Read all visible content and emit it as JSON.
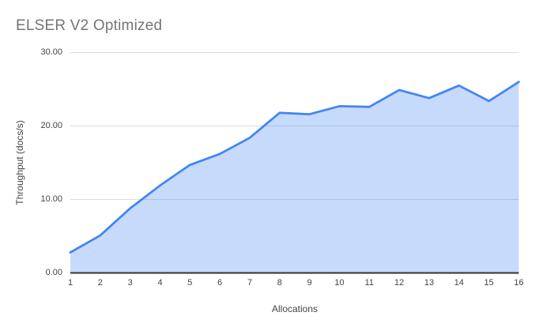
{
  "chart": {
    "title": "ELSER V2 Optimized"
  },
  "chart_data": {
    "type": "area",
    "title": "ELSER V2 Optimized",
    "xlabel": "Allocations",
    "ylabel": "Throughput (docs/s)",
    "x": [
      1,
      2,
      3,
      4,
      5,
      6,
      7,
      8,
      9,
      10,
      11,
      12,
      13,
      14,
      15,
      16
    ],
    "xtick_labels": [
      "1",
      "2",
      "3",
      "4",
      "5",
      "6",
      "7",
      "8",
      "9",
      "10",
      "11",
      "12",
      "13",
      "14",
      "15",
      "16"
    ],
    "series": [
      {
        "name": "Throughput (docs/s)",
        "values": [
          2.8,
          5.1,
          8.8,
          11.9,
          14.7,
          16.2,
          18.4,
          21.8,
          21.6,
          22.7,
          22.6,
          24.9,
          23.8,
          25.5,
          23.4,
          26.0
        ]
      }
    ],
    "ylim": [
      0,
      30
    ],
    "yticks": [
      0,
      10,
      20,
      30
    ],
    "ytick_labels": [
      "0.00",
      "10.00",
      "20.00",
      "30.00"
    ],
    "grid": "horizontal-only",
    "legend": "none"
  },
  "colors": {
    "line": "#4285f4",
    "fill": "rgba(66,133,244,0.30)",
    "title_text": "#757575",
    "tick_text": "#444444",
    "axis_title_text": "#444444",
    "gridline": "#dcdcdc",
    "axis_line": "#333333",
    "background": "#ffffff"
  }
}
